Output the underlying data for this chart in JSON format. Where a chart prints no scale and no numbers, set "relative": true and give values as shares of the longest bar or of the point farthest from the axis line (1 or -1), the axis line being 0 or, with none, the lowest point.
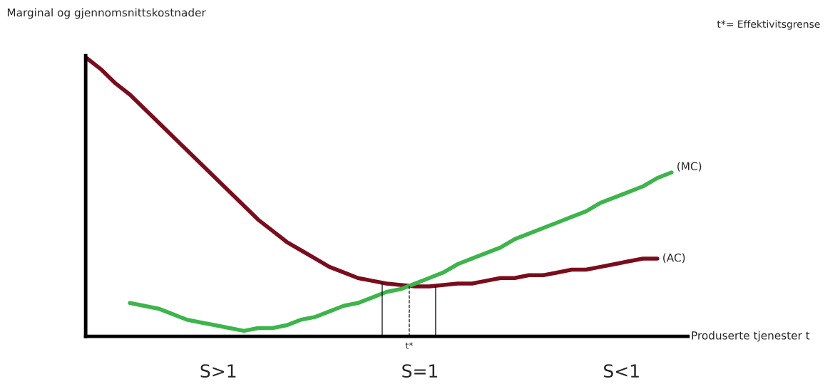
{
  "chart_data": {
    "type": "line",
    "relative": true,
    "xlabel": "Produserte tjenester t",
    "ylabel": "Marginal og gjennomsnittskostnader",
    "categories": [
      null,
      null,
      null,
      null,
      null,
      null,
      null,
      null,
      null,
      null,
      null,
      null,
      null,
      null,
      null,
      null,
      null,
      null,
      null,
      null,
      null,
      null,
      null,
      null,
      null,
      null,
      null,
      null,
      null,
      null,
      null,
      null,
      null,
      null,
      null,
      null,
      null,
      null,
      null,
      null,
      null,
      null
    ],
    "series": [
      {
        "name": "(AC)",
        "color": "#7b0c1c",
        "values": [
          1.0,
          0.96,
          0.91,
          0.87,
          0.82,
          0.77,
          0.72,
          0.67,
          0.62,
          0.57,
          0.52,
          0.47,
          0.42,
          0.38,
          0.34,
          0.31,
          0.28,
          0.25,
          0.23,
          0.21,
          0.2,
          0.19,
          0.185,
          0.18,
          0.18,
          0.185,
          0.19,
          0.19,
          0.2,
          0.21,
          0.21,
          0.22,
          0.22,
          0.23,
          0.24,
          0.24,
          0.25,
          0.26,
          0.27,
          0.28,
          0.28,
          null
        ]
      },
      {
        "name": "(MC)",
        "color": "#3cb54a",
        "values": [
          null,
          null,
          null,
          0.12,
          0.11,
          0.1,
          0.08,
          0.06,
          0.05,
          0.04,
          0.03,
          0.02,
          0.03,
          0.03,
          0.04,
          0.06,
          0.07,
          0.09,
          0.11,
          0.12,
          0.14,
          0.16,
          0.17,
          0.19,
          0.21,
          0.23,
          0.26,
          0.28,
          0.3,
          0.32,
          0.35,
          0.37,
          0.39,
          0.41,
          0.43,
          0.45,
          0.48,
          0.5,
          0.52,
          0.54,
          0.57,
          0.59
        ]
      }
    ],
    "annotations": [
      "t*= Effektivitsgrense",
      "t*",
      "S>1",
      "S=1",
      "S<1"
    ],
    "marker": "none",
    "line_style": "solid",
    "legend": false
  }
}
